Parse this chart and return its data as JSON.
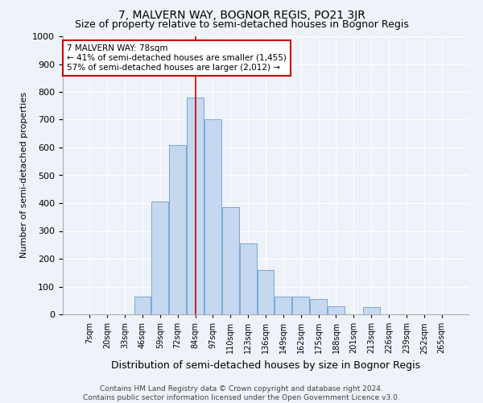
{
  "title": "7, MALVERN WAY, BOGNOR REGIS, PO21 3JR",
  "subtitle": "Size of property relative to semi-detached houses in Bognor Regis",
  "xlabel": "Distribution of semi-detached houses by size in Bognor Regis",
  "ylabel": "Number of semi-detached properties",
  "categories": [
    "7sqm",
    "20sqm",
    "33sqm",
    "46sqm",
    "59sqm",
    "72sqm",
    "84sqm",
    "97sqm",
    "110sqm",
    "123sqm",
    "136sqm",
    "149sqm",
    "162sqm",
    "175sqm",
    "188sqm",
    "201sqm",
    "213sqm",
    "226sqm",
    "239sqm",
    "252sqm",
    "265sqm"
  ],
  "values": [
    0,
    0,
    0,
    65,
    405,
    610,
    780,
    700,
    385,
    255,
    160,
    65,
    65,
    55,
    30,
    0,
    25,
    0,
    0,
    0,
    0
  ],
  "bar_color": "#c5d8f0",
  "bar_edge_color": "#7aa8d4",
  "vline_x": 6.0,
  "annotation_text": "7 MALVERN WAY: 78sqm\n← 41% of semi-detached houses are smaller (1,455)\n57% of semi-detached houses are larger (2,012) →",
  "annotation_box_color": "#ffffff",
  "annotation_box_edge": "#cc0000",
  "vline_color": "#cc0000",
  "footer": "Contains HM Land Registry data © Crown copyright and database right 2024.\nContains public sector information licensed under the Open Government Licence v3.0.",
  "ylim": [
    0,
    1000
  ],
  "background_color": "#eef2f9",
  "grid_color": "#ffffff",
  "title_fontsize": 10,
  "subtitle_fontsize": 9
}
